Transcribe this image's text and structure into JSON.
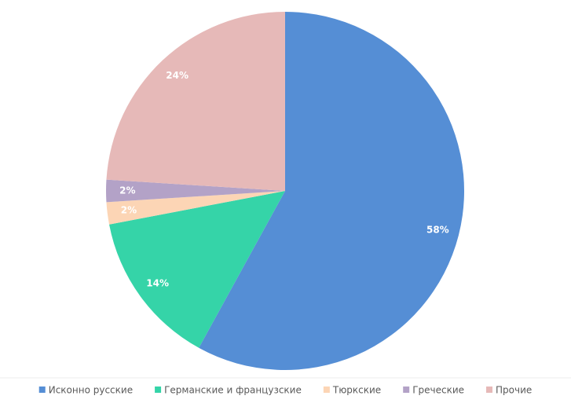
{
  "chart_data": {
    "type": "pie",
    "categories": [
      "Исконно русские",
      "Германские и французские",
      "Тюркские",
      "Греческие",
      "Прочие"
    ],
    "values": [
      58,
      14,
      2,
      2,
      24
    ],
    "value_labels": [
      "58%",
      "14%",
      "2%",
      "2%",
      "24%"
    ],
    "colors": [
      "#558ed5",
      "#35d4a8",
      "#fcd5b5",
      "#b3a2c7",
      "#e6b9b8"
    ],
    "legend": "bottom"
  }
}
